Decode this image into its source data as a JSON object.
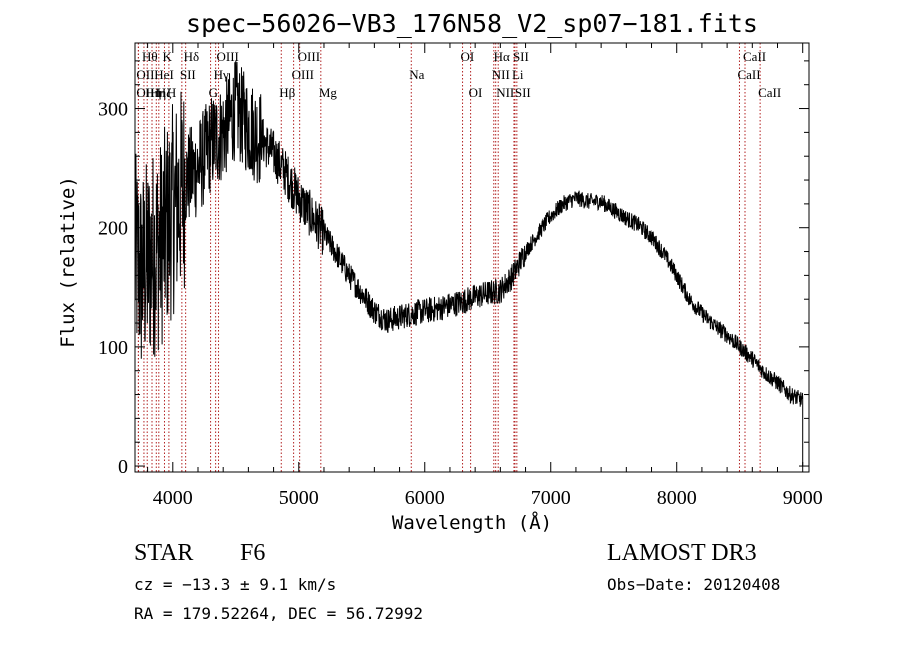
{
  "chart_data": {
    "type": "line",
    "title": "spec−56026−VB3_176N58_V2_sp07−181.fits",
    "xlabel": "Wavelength (Å)",
    "ylabel": "Flux (relative)",
    "xlim": [
      3700,
      9050
    ],
    "ylim": [
      -5,
      355
    ],
    "xticks": [
      4000,
      5000,
      6000,
      7000,
      8000,
      9000
    ],
    "yticks": [
      0,
      100,
      200,
      300
    ],
    "series": [
      {
        "name": "flux",
        "x": [
          3700,
          3750,
          3800,
          3850,
          3900,
          3950,
          4000,
          4050,
          4100,
          4150,
          4200,
          4300,
          4400,
          4500,
          4600,
          4700,
          4800,
          4900,
          5000,
          5100,
          5200,
          5300,
          5400,
          5500,
          5600,
          5700,
          5800,
          5900,
          6000,
          6100,
          6200,
          6300,
          6400,
          6500,
          6600,
          6700,
          6800,
          6900,
          7000,
          7100,
          7200,
          7300,
          7400,
          7500,
          7600,
          7700,
          7800,
          7900,
          8000,
          8100,
          8200,
          8300,
          8400,
          8500,
          8600,
          8700,
          8800,
          8900,
          9000
        ],
        "y": [
          175,
          160,
          170,
          180,
          185,
          200,
          215,
          225,
          240,
          245,
          250,
          270,
          280,
          300,
          285,
          275,
          262,
          245,
          225,
          210,
          195,
          178,
          160,
          145,
          130,
          122,
          125,
          128,
          130,
          132,
          135,
          138,
          142,
          145,
          147,
          160,
          180,
          195,
          210,
          220,
          225,
          222,
          222,
          215,
          208,
          202,
          192,
          178,
          160,
          140,
          128,
          118,
          110,
          100,
          90,
          78,
          70,
          60,
          55
        ]
      }
    ],
    "lines": [
      {
        "w": 3771,
        "label": "Hθ",
        "row": 0
      },
      {
        "w": 3727,
        "label": "OII",
        "row": 1
      },
      {
        "w": 3727,
        "label": "OII",
        "row": 2
      },
      {
        "w": 3797,
        "label": "Hη",
        "row": 2
      },
      {
        "w": 3835,
        "label": "Hη",
        "row": 2
      },
      {
        "w": 3869,
        "label": "HeI",
        "row": 1
      },
      {
        "w": 3889,
        "label": "Hζ",
        "row": 2
      },
      {
        "w": 3934,
        "label": "K",
        "row": 0
      },
      {
        "w": 3969,
        "label": "H",
        "row": 2
      },
      {
        "w": 4072,
        "label": "SII",
        "row": 1
      },
      {
        "w": 4102,
        "label": "Hδ",
        "row": 0
      },
      {
        "w": 4300,
        "label": "G",
        "row": 2
      },
      {
        "w": 4340,
        "label": "Hγ",
        "row": 1
      },
      {
        "w": 4363,
        "label": "OIII",
        "row": 0
      },
      {
        "w": 4861,
        "label": "Hβ",
        "row": 2
      },
      {
        "w": 4959,
        "label": "OIII",
        "row": 1
      },
      {
        "w": 5007,
        "label": "OIII",
        "row": 0
      },
      {
        "w": 5175,
        "label": "Mg",
        "row": 2
      },
      {
        "w": 5893,
        "label": "Na",
        "row": 1
      },
      {
        "w": 6300,
        "label": "OI",
        "row": 0
      },
      {
        "w": 6364,
        "label": "OI",
        "row": 2
      },
      {
        "w": 6548,
        "label": "NII",
        "row": 1
      },
      {
        "w": 6563,
        "label": "Hα",
        "row": 0
      },
      {
        "w": 6583,
        "label": "NII",
        "row": 2
      },
      {
        "w": 6708,
        "label": "Li",
        "row": 1
      },
      {
        "w": 6716,
        "label": "SII",
        "row": 0
      },
      {
        "w": 6731,
        "label": "SII",
        "row": 2
      },
      {
        "w": 8498,
        "label": "CaII",
        "row": 1
      },
      {
        "w": 8542,
        "label": "CaII",
        "row": 0
      },
      {
        "w": 8662,
        "label": "CaII",
        "row": 2
      }
    ]
  },
  "info": {
    "class": "STAR",
    "subclass": "F6",
    "survey": "LAMOST DR3",
    "cz": "cz = −13.3 ± 9.1 km/s",
    "obs_date": "Obs−Date: 20120408",
    "coords": "RA = 179.52264, DEC =  56.72992"
  },
  "colors": {
    "spectrum": "#000000",
    "line_markers": "#b22222"
  }
}
